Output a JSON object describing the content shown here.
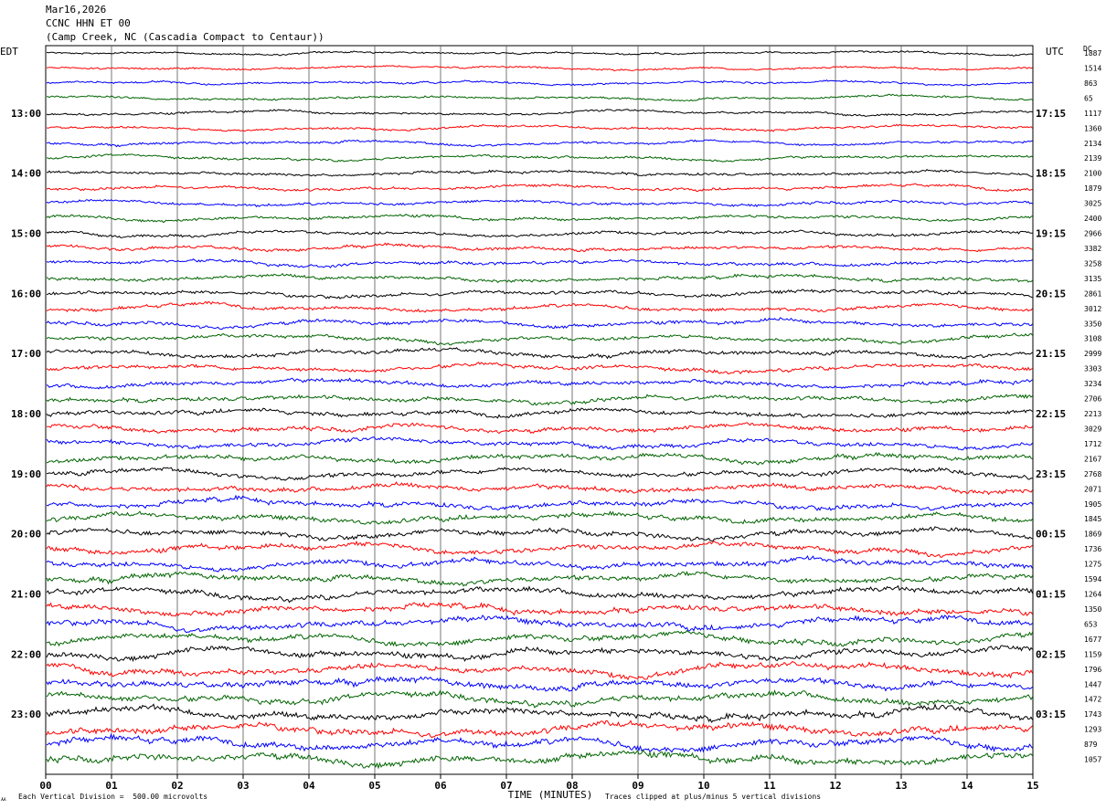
{
  "header": {
    "date": "Mar16,2026",
    "station": "CCNC HHN ET 00",
    "location": "(Camp Creek, NC (Cascadia Compact to Centaur))"
  },
  "left_axis_label": "EDT",
  "right_axis_label": "UTC",
  "dc_label": "DC",
  "footer": {
    "scale_note": "Each Vertical Division =  500.00 microvolts",
    "clip_note": "Traces clipped at plus/minus 5 vertical divisions",
    "mark": "ㅆ"
  },
  "chart_data": {
    "type": "line",
    "title": "",
    "xlabel": "TIME (MINUTES)",
    "ylabel": "",
    "x_ticks": [
      "00",
      "01",
      "02",
      "03",
      "04",
      "05",
      "06",
      "07",
      "08",
      "09",
      "10",
      "11",
      "12",
      "13",
      "14",
      "15"
    ],
    "xlim": [
      0,
      15
    ],
    "grid": "vertical lines at each minute",
    "left_time_labels": [
      "13:00",
      "14:00",
      "15:00",
      "16:00",
      "17:00",
      "18:00",
      "19:00",
      "20:00",
      "21:00",
      "22:00",
      "23:00"
    ],
    "right_time_labels": [
      "17:15",
      "18:15",
      "19:15",
      "20:15",
      "21:15",
      "22:15",
      "23:15",
      "00:15",
      "01:15",
      "02:15",
      "03:15"
    ],
    "trace_colors": [
      "#000000",
      "#ff0000",
      "#0000ff",
      "#006400"
    ],
    "dc_offsets": [
      "1887",
      "1514",
      "863",
      "65",
      "1117",
      "1360",
      "2134",
      "2139",
      "2100",
      "1879",
      "3025",
      "2400",
      "2966",
      "3382",
      "3258",
      "3135",
      "2861",
      "3012",
      "3350",
      "3108",
      "2999",
      "3303",
      "3234",
      "2706",
      "2213",
      "3029",
      "1712",
      "2167",
      "2768",
      "2071",
      "1905",
      "1845",
      "1869",
      "1736",
      "1275",
      "1594",
      "1264",
      "1350",
      "653",
      "1677",
      "1159",
      "1796",
      "1447",
      "1472",
      "1743",
      "1293",
      "879",
      "1057"
    ]
  }
}
